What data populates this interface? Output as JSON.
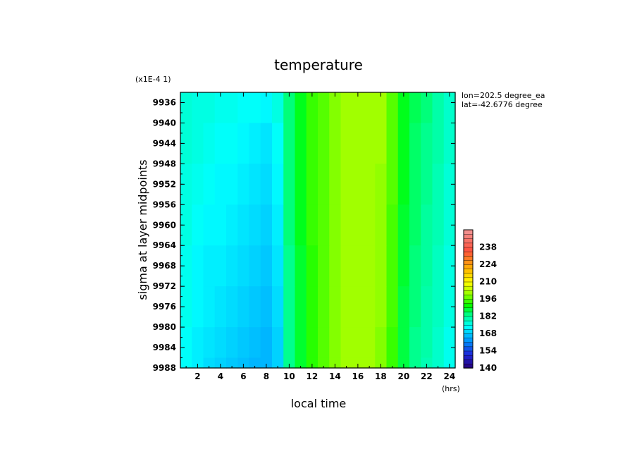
{
  "chart_data": {
    "type": "heatmap",
    "title": "temperature",
    "xlabel": "local time",
    "ylabel": "sigma at layer midpoints",
    "y_scale_note": "(x1E-4 1)",
    "x_unit": "(hrs)",
    "annotations": [
      "lon=202.5 degree_ea",
      "lat=-42.6776 degree"
    ],
    "xlim": [
      0.5,
      24.5
    ],
    "ylim": [
      9988,
      9934
    ],
    "x_ticks": [
      "2",
      "4",
      "6",
      "8",
      "10",
      "12",
      "14",
      "16",
      "18",
      "20",
      "22",
      "24"
    ],
    "y_ticks": [
      "9936",
      "9940",
      "9944",
      "9948",
      "9952",
      "9956",
      "9960",
      "9964",
      "9968",
      "9972",
      "9976",
      "9980",
      "9984",
      "9988"
    ],
    "colorbar": {
      "ticks": [
        "140",
        "154",
        "168",
        "182",
        "196",
        "210",
        "224",
        "238"
      ],
      "range": [
        140,
        252
      ]
    },
    "x": [
      1,
      2,
      3,
      4,
      5,
      6,
      7,
      8,
      9,
      10,
      11,
      12,
      13,
      14,
      15,
      16,
      17,
      18,
      19,
      20,
      21,
      22,
      23,
      24
    ],
    "y": [
      9936,
      9944,
      9952,
      9960,
      9968,
      9976,
      9984,
      9988
    ],
    "z": [
      [
        177,
        176,
        176,
        175,
        175,
        174,
        174,
        173,
        176,
        184,
        189,
        194,
        196,
        199,
        201,
        201,
        201,
        201,
        196,
        189,
        186,
        184,
        181,
        178
      ],
      [
        177,
        176,
        175,
        174,
        174,
        173,
        172,
        171,
        174,
        184,
        189,
        194,
        196,
        199,
        201,
        201,
        201,
        201,
        196,
        189,
        185,
        183,
        181,
        178
      ],
      [
        176,
        175,
        174,
        173,
        173,
        172,
        171,
        170,
        173,
        184,
        189,
        194,
        196,
        199,
        201,
        201,
        201,
        200,
        196,
        189,
        185,
        183,
        180,
        177
      ],
      [
        176,
        174,
        173,
        173,
        172,
        171,
        170,
        169,
        172,
        184,
        189,
        194,
        196,
        199,
        201,
        201,
        201,
        200,
        195,
        188,
        185,
        182,
        180,
        177
      ],
      [
        175,
        173,
        172,
        172,
        171,
        170,
        169,
        168,
        171,
        183,
        188,
        193,
        196,
        199,
        201,
        201,
        201,
        200,
        195,
        188,
        184,
        182,
        179,
        176
      ],
      [
        175,
        173,
        172,
        171,
        170,
        169,
        168,
        167,
        170,
        183,
        188,
        193,
        196,
        199,
        201,
        201,
        201,
        200,
        195,
        187,
        184,
        181,
        179,
        176
      ],
      [
        174,
        172,
        171,
        170,
        169,
        168,
        167,
        166,
        169,
        183,
        188,
        193,
        196,
        199,
        201,
        201,
        201,
        199,
        194,
        187,
        183,
        181,
        178,
        175
      ],
      [
        174,
        172,
        170,
        169,
        168,
        167,
        166,
        166,
        169,
        183,
        188,
        193,
        196,
        199,
        201,
        201,
        201,
        199,
        194,
        187,
        183,
        180,
        178,
        175
      ]
    ]
  }
}
